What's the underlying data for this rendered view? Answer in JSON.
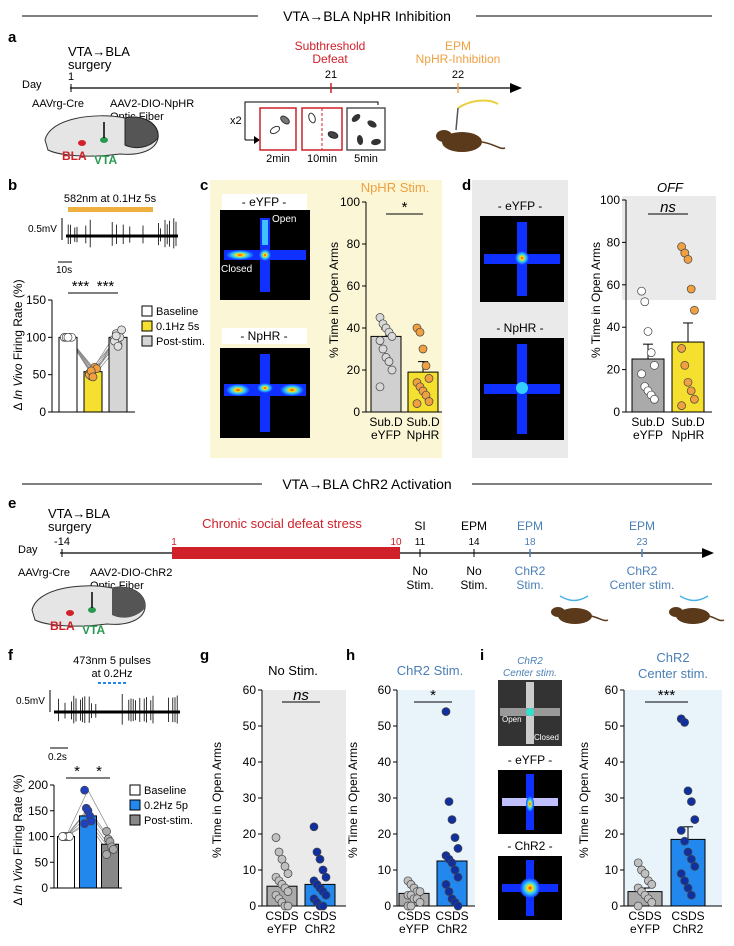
{
  "sections": {
    "top_title": "VTA→BLA NpHR Inhibition",
    "bottom_title": "VTA→BLA ChR2 Activation"
  },
  "panel_letters": {
    "a": "a",
    "b": "b",
    "c": "c",
    "d": "d",
    "e": "e",
    "f": "f",
    "g": "g",
    "h": "h",
    "i": "i"
  },
  "panel_a": {
    "day_label": "Day",
    "surgery_line1": "VTA→BLA",
    "surgery_line2": "surgery",
    "day1": "1",
    "defeat_line1": "Subthreshold",
    "defeat_line2": "Defeat",
    "day21": "21",
    "epm_line1": "EPM",
    "epm_line2": "NpHR-Inhibition",
    "day22": "22",
    "virus1": "AAVrg-Cre",
    "virus2": "AAV2-DIO-NpHR",
    "fiber": "Optic Fiber",
    "bla": "BLA",
    "vta": "VTA",
    "repeat": "x2",
    "t1": "2min",
    "t2": "10min",
    "t3": "5min"
  },
  "panel_b": {
    "stim_label": "582nm at 0.1Hz 5s",
    "scale_v": "0.5mV",
    "scale_t": "10s",
    "ylabel_prefix": "Δ ",
    "ylabel_italic": "In Vivo",
    "ylabel_suffix": " Firing Rate (%)",
    "sig1": "***",
    "sig2": "***",
    "legend": [
      "Baseline",
      "0.1Hz 5s",
      "Post-stim."
    ]
  },
  "panel_c": {
    "title": "NpHR Stim.",
    "eyfp_label": "- eYFP -",
    "nphr_label": "- NpHR -",
    "open_label": "Open",
    "closed_label": "Closed",
    "ylabel": "% Time in Open Arms",
    "sig": "*",
    "cat1_l1": "Sub.D",
    "cat1_l2": "eYFP",
    "cat2_l1": "Sub.D",
    "cat2_l2": "NpHR"
  },
  "panel_d": {
    "title": "OFF",
    "eyfp_label": "- eYFP -",
    "nphr_label": "- NpHR -",
    "ylabel": "% Time in Open Arms",
    "sig": "ns",
    "cat1_l1": "Sub.D",
    "cat1_l2": "eYFP",
    "cat2_l1": "Sub.D",
    "cat2_l2": "NpHR"
  },
  "panel_e": {
    "day_label": "Day",
    "surgery_line1": "VTA→BLA",
    "surgery_line2": "surgery",
    "day_m14": "-14",
    "csds_label": "Chronic social defeat stress",
    "day1": "1",
    "day10": "10",
    "si": "SI",
    "day11": "11",
    "si_sub1": "No",
    "si_sub2": "Stim.",
    "epm1": "EPM",
    "day14": "14",
    "epm1_sub1": "No",
    "epm1_sub2": "Stim.",
    "epm2": "EPM",
    "day18": "18",
    "epm2_sub1": "ChR2",
    "epm2_sub2": "Stim.",
    "epm3": "EPM",
    "day23": "23",
    "epm3_sub1": "ChR2",
    "epm3_sub2": "Center stim.",
    "virus1": "AAVrg-Cre",
    "virus2": "AAV2-DIO-ChR2",
    "fiber": "Optic Fiber",
    "bla": "BLA",
    "vta": "VTA"
  },
  "panel_f": {
    "stim_line1": "473nm 5 pulses",
    "stim_line2": "at 0.2Hz",
    "scale_v": "0.5mV",
    "scale_t": "0.2s",
    "ylabel_prefix": "Δ ",
    "ylabel_italic": "In Vivo",
    "ylabel_suffix": " Firing Rate (%)",
    "sig1": "*",
    "sig2": "*",
    "legend": [
      "Baseline",
      "0.2Hz 5p",
      "Post-stim."
    ]
  },
  "panel_g": {
    "title": "No Stim.",
    "sig": "ns",
    "ylabel": "% Time in Open Arms",
    "cat1_l1": "CSDS",
    "cat1_l2": "eYFP",
    "cat2_l1": "CSDS",
    "cat2_l2": "ChR2"
  },
  "panel_h": {
    "title": "ChR2 Stim.",
    "sig": "*",
    "ylabel": "% Time in Open Arms",
    "cat1_l1": "CSDS",
    "cat1_l2": "eYFP",
    "cat2_l1": "CSDS",
    "cat2_l2": "ChR2"
  },
  "panel_i": {
    "title_line1": "ChR2",
    "title_line2": "Center stim.",
    "photo_line1": "ChR2",
    "photo_line2": "Center stim.",
    "open_label": "Open",
    "closed_label": "Closed",
    "eyfp_label": "- eYFP -",
    "chr2_label": "- ChR2 -",
    "sig": "***",
    "ylabel": "% Time in Open Arms",
    "cat1_l1": "CSDS",
    "cat1_l2": "eYFP",
    "cat2_l1": "CSDS",
    "cat2_l2": "ChR2"
  },
  "colors": {
    "red": "#d0202a",
    "orange": "#f0a040",
    "yellow": "#f5e030",
    "lightyellow": "#fbf7d6",
    "lightgray": "#eaeaea",
    "gray": "#b5b5b5",
    "blue": "#2288ee",
    "lightblue": "#e8f3fa",
    "darkblue": "#1030a0",
    "steelblue": "#4a7fb5"
  },
  "chart_data": [
    {
      "id": "b",
      "type": "bar",
      "categories": [
        "Baseline",
        "0.1Hz 5s",
        "Post-stim."
      ],
      "values": [
        100,
        54,
        100
      ],
      "ylim": [
        0,
        150
      ],
      "yticks": [
        0,
        50,
        100,
        150
      ],
      "points": [
        [
          100,
          100,
          100,
          100,
          100,
          100,
          100,
          100
        ],
        [
          52,
          48,
          56,
          60,
          58,
          50,
          55,
          47
        ],
        [
          98,
          105,
          90,
          100,
          110,
          95,
          102,
          88
        ]
      ]
    },
    {
      "id": "c",
      "type": "bar",
      "categories": [
        "Sub.D eYFP",
        "Sub.D NpHR"
      ],
      "values": [
        36,
        19
      ],
      "errors": [
        3.5,
        5
      ],
      "ylim": [
        0,
        100
      ],
      "yticks": [
        0,
        20,
        40,
        60,
        80,
        100
      ],
      "points": [
        [
          45,
          42,
          40,
          38,
          36,
          34,
          30,
          26,
          24,
          20,
          12
        ],
        [
          40,
          38,
          30,
          22,
          16,
          14,
          12,
          10,
          8,
          5,
          4
        ]
      ]
    },
    {
      "id": "d",
      "type": "bar",
      "categories": [
        "Sub.D eYFP",
        "Sub.D NpHR"
      ],
      "values": [
        25,
        33
      ],
      "errors": [
        7,
        9
      ],
      "ylim": [
        0,
        100
      ],
      "yticks": [
        0,
        20,
        40,
        60,
        80,
        100
      ],
      "points": [
        [
          57,
          52,
          38,
          28,
          22,
          18,
          12,
          10,
          8,
          6
        ],
        [
          78,
          75,
          72,
          58,
          48,
          30,
          22,
          14,
          10,
          6,
          3
        ]
      ]
    },
    {
      "id": "f",
      "type": "bar",
      "categories": [
        "Baseline",
        "0.2Hz 5p",
        "Post-stim."
      ],
      "values": [
        100,
        140,
        85
      ],
      "ylim": [
        0,
        200
      ],
      "yticks": [
        0,
        50,
        100,
        150,
        200
      ],
      "points": [
        [
          100,
          100,
          100,
          100,
          100,
          100
        ],
        [
          190,
          155,
          150,
          140,
          130,
          125
        ],
        [
          110,
          95,
          90,
          80,
          75,
          65
        ]
      ]
    },
    {
      "id": "g",
      "type": "bar",
      "categories": [
        "CSDS eYFP",
        "CSDS ChR2"
      ],
      "values": [
        5.5,
        6
      ],
      "ylim": [
        0,
        60
      ],
      "yticks": [
        0,
        10,
        20,
        30,
        40,
        50,
        60
      ],
      "points": [
        [
          19,
          15,
          13,
          11,
          9,
          8,
          7,
          6,
          5,
          4,
          3,
          2,
          1,
          0,
          0
        ],
        [
          22,
          15,
          13,
          10,
          8,
          7,
          6,
          5,
          4,
          3,
          2,
          1,
          0,
          0
        ]
      ]
    },
    {
      "id": "h",
      "type": "bar",
      "categories": [
        "CSDS eYFP",
        "CSDS ChR2"
      ],
      "values": [
        3.5,
        12.5
      ],
      "ylim": [
        0,
        60
      ],
      "yticks": [
        0,
        10,
        20,
        30,
        40,
        50,
        60
      ],
      "points": [
        [
          7,
          6,
          5,
          4,
          4,
          3,
          3,
          2,
          2,
          1,
          0,
          0
        ],
        [
          54,
          29,
          24,
          19,
          16,
          14,
          13,
          12,
          10,
          8,
          6,
          4,
          2,
          1,
          0
        ]
      ]
    },
    {
      "id": "i",
      "type": "bar",
      "categories": [
        "CSDS eYFP",
        "CSDS ChR2"
      ],
      "values": [
        4,
        18.5
      ],
      "errors": [
        1,
        3.5
      ],
      "ylim": [
        0,
        60
      ],
      "yticks": [
        0,
        10,
        20,
        30,
        40,
        50,
        60
      ],
      "points": [
        [
          12,
          10,
          9,
          7,
          6,
          5,
          4,
          3,
          2,
          1,
          0
        ],
        [
          52,
          51,
          32,
          29,
          24,
          21,
          18,
          15,
          13,
          11,
          9,
          7,
          5,
          3
        ]
      ]
    }
  ]
}
